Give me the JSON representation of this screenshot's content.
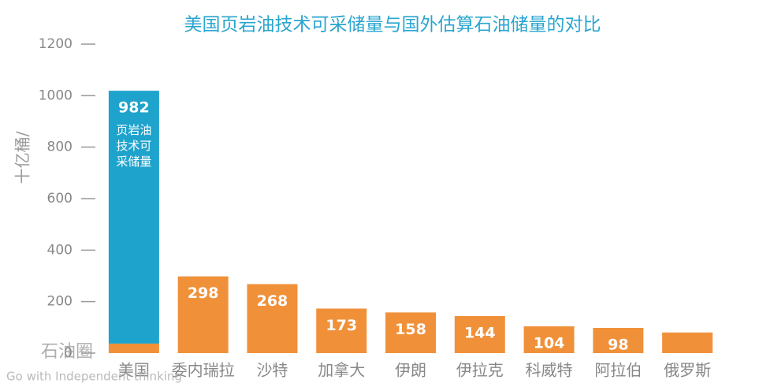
{
  "chart_data": {
    "type": "bar",
    "stacked": true,
    "title": "美国页岩油技术可采储量与国外估算石油储量的对比",
    "ylabel": "十亿桶/",
    "categories": [
      "美国",
      "委内瑞拉",
      "沙特",
      "加拿大",
      "伊朗",
      "伊拉克",
      "科威特",
      "阿拉伯",
      "俄罗斯"
    ],
    "series": [
      {
        "color": "#f0913a",
        "values": [
          37,
          298,
          268,
          173,
          158,
          144,
          104,
          98,
          80
        ]
      },
      {
        "name": "页岩油技术可采储量",
        "color": "#1ea3cc",
        "values": [
          982,
          null,
          null,
          null,
          null,
          null,
          null,
          null,
          null
        ]
      }
    ],
    "ylim": [
      0,
      1200
    ],
    "yticks": [
      0,
      200,
      400,
      600,
      800,
      1000,
      1200
    ],
    "watermark": "石油圈",
    "watermark_subtitle": "Go with Independent thinking"
  }
}
